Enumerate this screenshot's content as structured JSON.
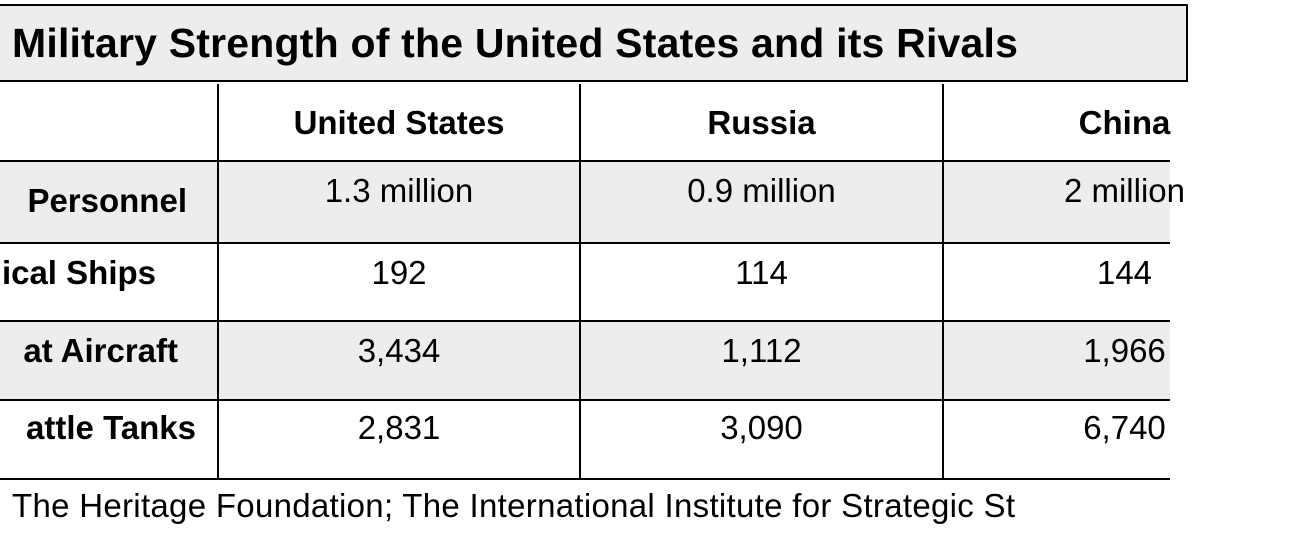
{
  "title": "Military Strength of the United States and its Rivals",
  "columns": [
    "United States",
    "Russia",
    "China"
  ],
  "rows": [
    {
      "label": "Personnel",
      "values": [
        "1.3 million",
        "0.9 million",
        "2 million"
      ]
    },
    {
      "label": "ical Ships",
      "values": [
        "192",
        "114",
        "144"
      ]
    },
    {
      "label": "at Aircraft",
      "values": [
        "3,434",
        "1,112",
        "1,966"
      ]
    },
    {
      "label": "attle Tanks",
      "values": [
        "2,831",
        "3,090",
        "6,740"
      ]
    }
  ],
  "source": "The Heritage Foundation; The International Institute for Strategic St",
  "colors": {
    "shaded_row": "#ededed",
    "border": "#000000",
    "text": "#000000"
  }
}
